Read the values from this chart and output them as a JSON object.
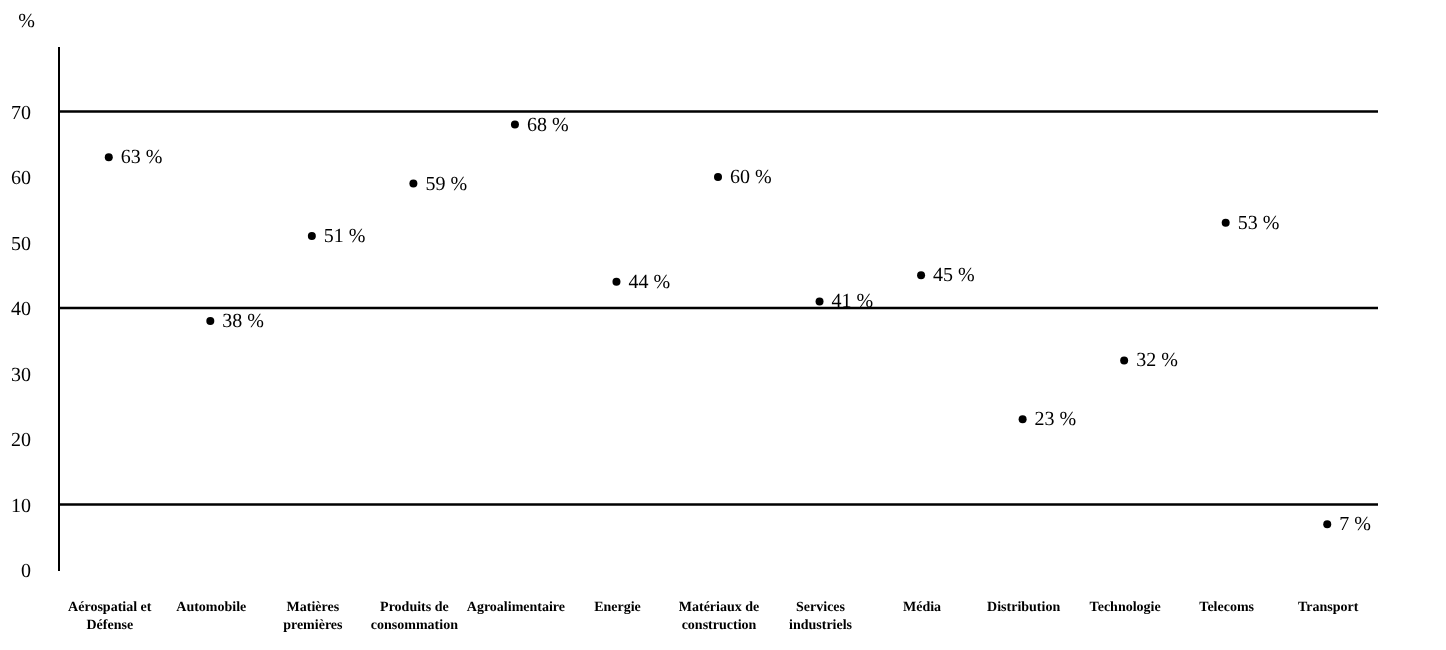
{
  "chart_data": {
    "type": "scatter",
    "ylabel": "%",
    "categories": [
      "Aérospatial et Défense",
      "Automobile",
      "Matières premières",
      "Produits de consommation",
      "Agroalimentaire",
      "Energie",
      "Matériaux de construction",
      "Services industriels",
      "Média",
      "Distribution",
      "Technologie",
      "Telecoms",
      "Transport"
    ],
    "series": [
      {
        "color": "#000000",
        "values": [
          63,
          38,
          51,
          59,
          68,
          44,
          60,
          41,
          45,
          23,
          32,
          53,
          7
        ],
        "value_labels": [
          "63 %",
          "38 %",
          "51 %",
          "59 %",
          "68 %",
          "44 %",
          "60 %",
          "41 %",
          "45 %",
          "23 %",
          "32 %",
          "53 %",
          "7 %"
        ]
      }
    ],
    "ylim": [
      0,
      80
    ],
    "yticks": [
      0,
      10,
      20,
      30,
      40,
      50,
      60,
      70
    ],
    "grid": false,
    "marker": "circle",
    "ref_lines": [
      {
        "axis": "y",
        "value": 10
      },
      {
        "axis": "y",
        "value": 40
      },
      {
        "axis": "y",
        "value": 70
      }
    ]
  }
}
